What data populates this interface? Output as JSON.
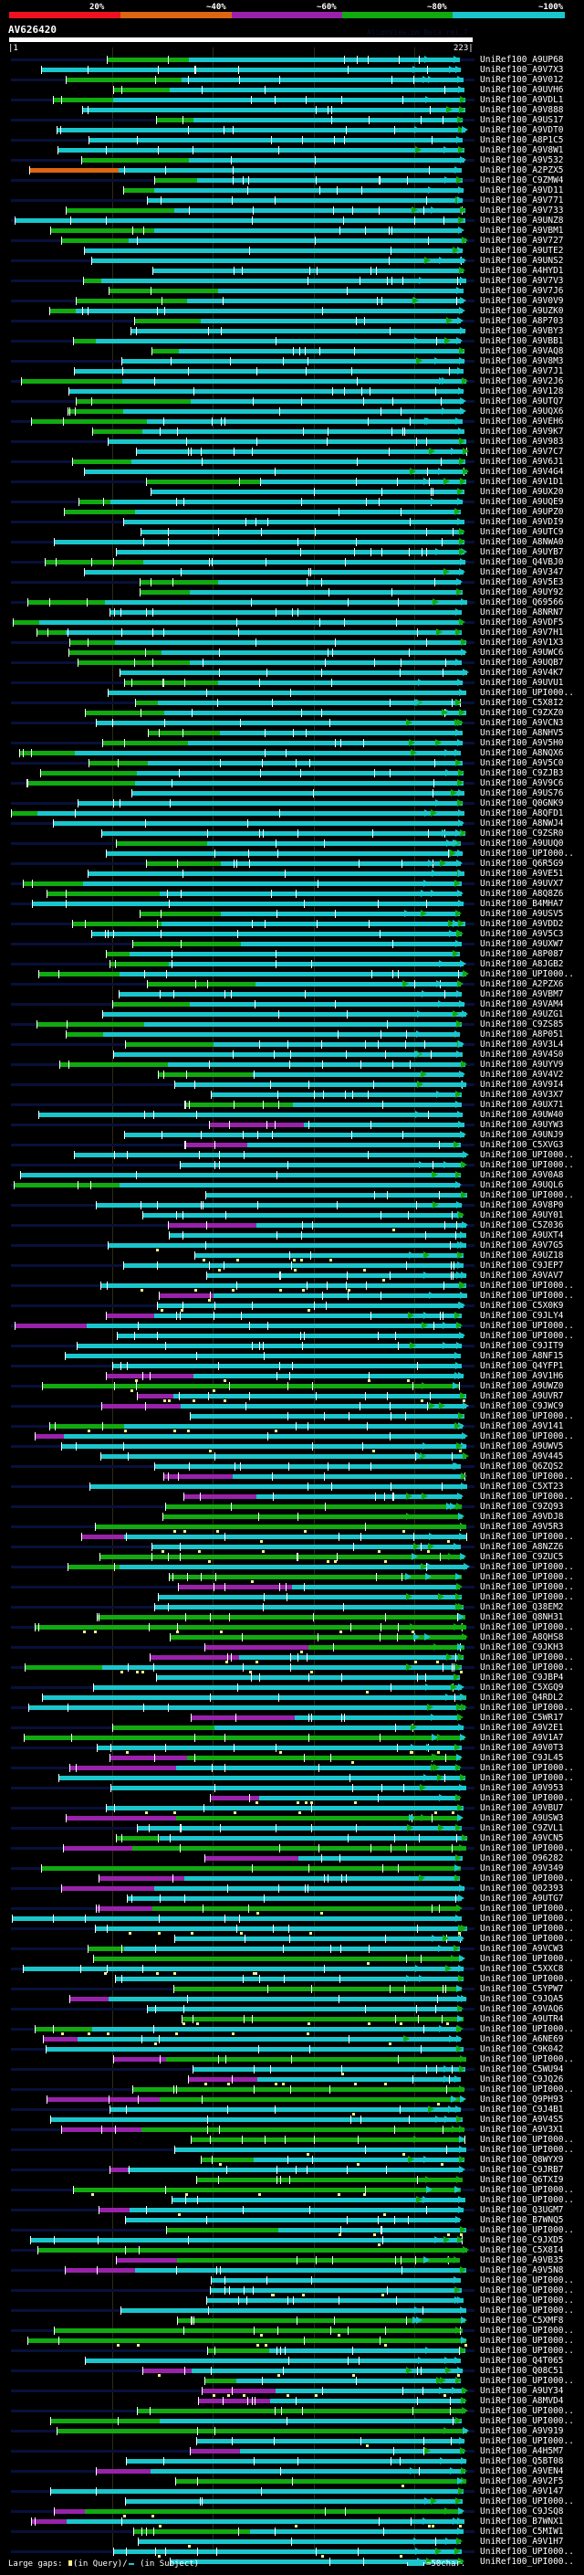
{
  "scale": {
    "labels": [
      "20%",
      "~40%",
      "~60%",
      "~80%",
      "~100%"
    ],
    "colors": [
      "#ee1122",
      "#dd6611",
      "#9922aa",
      "#11aa11",
      "#1ac6cc"
    ]
  },
  "query": {
    "name": "AV626420",
    "start": "|1",
    "end": "223|",
    "watermark": "AlignView.pm Beta rel.7"
  },
  "colors": {
    "connector": "#08103a",
    "tick": "#ffffff",
    "gap_query": "#ffee88"
  },
  "hits": [
    "UniRef100_A9UP68",
    "UniRef100_A9V7X3",
    "UniRef100_A9V012",
    "UniRef100_A9UVH6",
    "UniRef100_A9VDL1",
    "UniRef100_A9V888",
    "UniRef100_A9US17",
    "UniRef100_A9VDT0",
    "UniRef100_A8P1C5",
    "UniRef100_A9V8W1",
    "UniRef100_A9V532",
    "UniRef100_A2PZX5",
    "UniRef100_C9ZMW4",
    "UniRef100_A9VD11",
    "UniRef100_A9V771",
    "UniRef100_A9V733",
    "UniRef100_A9UNZ8",
    "UniRef100_A9VBM1",
    "UniRef100_A9V727",
    "UniRef100_A9UTE2",
    "UniRef100_A9UNS2",
    "UniRef100_A4HYD1",
    "UniRef100_A9V7V3",
    "UniRef100_A9V7J6",
    "UniRef100_A9V0V9",
    "UniRef100_A9UZK0",
    "UniRef100_A8P703",
    "UniRef100_A9VBY3",
    "UniRef100_A9VBB1",
    "UniRef100_A9VAQ8",
    "UniRef100_A9V8M3",
    "UniRef100_A9V7J1",
    "UniRef100_A9V2J6",
    "UniRef100_A9V128",
    "UniRef100_A9UTQ7",
    "UniRef100_A9UQX6",
    "UniRef100_A9VEH6",
    "UniRef100_A9V9K7",
    "UniRef100_A9V983",
    "UniRef100_A9V7C7",
    "UniRef100_A9V6J1",
    "UniRef100_A9V4G4",
    "UniRef100_A9V1D1",
    "UniRef100_A9UX20",
    "UniRef100_A9UQE9",
    "UniRef100_A9UPZ0",
    "UniRef100_A9VDI9",
    "UniRef100_A9UTC9",
    "UniRef100_A8NWA0",
    "UniRef100_A9UYB7",
    "UniRef100_Q4VBJ0",
    "UniRef100_A9V347",
    "UniRef100_A9V5E3",
    "UniRef100_A9UY92",
    "UniRef100_Q69566",
    "UniRef100_A8NRN7",
    "UniRef100_A9VDF5",
    "UniRef100_A9V7H1",
    "UniRef100_A9V1X3",
    "UniRef100_A9UWC6",
    "UniRef100_A9UQB7",
    "UniRef100_A9V4K7",
    "UniRef100_A9UVU1",
    "UniRef100_UPI000..",
    "UniRef100_C5X8I2",
    "UniRef100_C9ZXZ0",
    "UniRef100_A9VCN3",
    "UniRef100_A8NHV5",
    "UniRef100_A9V5H0",
    "UniRef100_A8NQX6",
    "UniRef100_A9V5C0",
    "UniRef100_C9ZJB3",
    "UniRef100_A9V9C6",
    "UniRef100_A9US76",
    "UniRef100_Q0GNK9",
    "UniRef100_A8QFD1",
    "UniRef100_A8NWJ4",
    "UniRef100_C9ZSR0",
    "UniRef100_A9UUQ0",
    "UniRef100_UPI000..",
    "UniRef100_Q6R5G9",
    "UniRef100_A9VE51",
    "UniRef100_A9UVX7",
    "UniRef100_A8Q8Z6",
    "UniRef100_B4MHA7",
    "UniRef100_A9USV5",
    "UniRef100_A9VDD2",
    "UniRef100_A9V5C3",
    "UniRef100_A9UXW7",
    "UniRef100_A8P087",
    "UniRef100_A8JGB2",
    "UniRef100_UPI000..",
    "UniRef100_A2PZX6",
    "UniRef100_A9VBM7",
    "UniRef100_A9VAM4",
    "UniRef100_A9UZG1",
    "UniRef100_C9ZS85",
    "UniRef100_A8P051",
    "UniRef100_A9V3L4",
    "UniRef100_A9V4S0",
    "UniRef100_A9UYV9",
    "UniRef100_A9V4V2",
    "UniRef100_A9V9I4",
    "UniRef100_A9V3X7",
    "UniRef100_A9UX71",
    "UniRef100_A9UW40",
    "UniRef100_A9UYW3",
    "UniRef100_A9UNJ9",
    "UniRef100_C5XVG3",
    "UniRef100_UPI000..",
    "UniRef100_UPI000..",
    "UniRef100_A9V0A8",
    "UniRef100_A9UQL6",
    "UniRef100_UPI000..",
    "UniRef100_A9V8P0",
    "UniRef100_A9UY01",
    "UniRef100_C5Z036",
    "UniRef100_A9UXT4",
    "UniRef100_A9V7G5",
    "UniRef100_A9UZ18",
    "UniRef100_C9JEP7",
    "UniRef100_A9VAV7",
    "UniRef100_UPI000..",
    "UniRef100_UPI000..",
    "UniRef100_C5X0K9",
    "UniRef100_C9JLY4",
    "UniRef100_UPI000..",
    "UniRef100_UPI000..",
    "UniRef100_C9JIT9",
    "UniRef100_A8NF15",
    "UniRef100_Q4YFP1",
    "UniRef100_A9V1H6",
    "UniRef100_A9UWZ0",
    "UniRef100_A9UVR7",
    "UniRef100_C9JWC9",
    "UniRef100_UPI000..",
    "UniRef100_A9V141",
    "UniRef100_UPI000..",
    "UniRef100_A9UWV5",
    "UniRef100_A9V445",
    "UniRef100_Q6ZQS2",
    "UniRef100_UPI000..",
    "UniRef100_C5XT23",
    "UniRef100_UPI000..",
    "UniRef100_C9ZQ93",
    "UniRef100_A9VDJ8",
    "UniRef100_A9V5R3",
    "UniRef100_UPI000..",
    "UniRef100_A8NZZ6",
    "UniRef100_C9ZUC5",
    "UniRef100_UPI000..",
    "UniRef100_UPI000..",
    "UniRef100_UPI000..",
    "UniRef100_UPI000..",
    "UniRef100_Q38EM2",
    "UniRef100_Q8NH31",
    "UniRef100_UPI000..",
    "UniRef100_A8QHS8",
    "UniRef100_C9JKH3",
    "UniRef100_UPI000..",
    "UniRef100_UPI000..",
    "UniRef100_C9JBP4",
    "UniRef100_C5XGQ9",
    "UniRef100_Q4RDL2",
    "UniRef100_UPI000..",
    "UniRef100_C5WR17",
    "UniRef100_A9V2E1",
    "UniRef100_A9V1A7",
    "UniRef100_A9V0T3",
    "UniRef100_C9JL45",
    "UniRef100_UPI000..",
    "UniRef100_UPI000..",
    "UniRef100_A9V953",
    "UniRef100_UPI000..",
    "UniRef100_A9VBU7",
    "UniRef100_A9USW3",
    "UniRef100_C9ZVL1",
    "UniRef100_A9VCN5",
    "UniRef100_UPI000..",
    "UniRef100_O96282",
    "UniRef100_A9V349",
    "UniRef100_UPI000..",
    "UniRef100_Q02393",
    "UniRef100_A9UTG7",
    "UniRef100_UPI000..",
    "UniRef100_UPI000..",
    "UniRef100_UPI000..",
    "UniRef100_UPI000..",
    "UniRef100_A9VCW3",
    "UniRef100_UPI000..",
    "UniRef100_C5XXC8",
    "UniRef100_UPI000..",
    "UniRef100_C5YPW7",
    "UniRef100_C9JQA5",
    "UniRef100_A9VAQ6",
    "UniRef100_A9UTR4",
    "UniRef100_UPI000..",
    "UniRef100_A6NE69",
    "UniRef100_C9K042",
    "UniRef100_UPI000..",
    "UniRef100_C5WU94",
    "UniRef100_C9JQ26",
    "UniRef100_UPI000..",
    "UniRef100_Q9PH93",
    "UniRef100_C9J4B1",
    "UniRef100_A9V4S5",
    "UniRef100_A9V3X1",
    "UniRef100_UPI000..",
    "UniRef100_UPI000..",
    "UniRef100_Q8WYX9",
    "UniRef100_C9JRB7",
    "UniRef100_Q6TXI9",
    "UniRef100_UPI000..",
    "UniRef100_UPI000..",
    "UniRef100_Q3UGM7",
    "UniRef100_B7WNQ5",
    "UniRef100_UPI000..",
    "UniRef100_C9JXD5",
    "UniRef100_C5X8I4",
    "UniRef100_A9VB35",
    "UniRef100_A9V5N8",
    "UniRef100_UPI000..",
    "UniRef100_UPI000..",
    "UniRef100_UPI000..",
    "UniRef100_UPI000..",
    "UniRef100_C5XMF8",
    "UniRef100_UPI000..",
    "UniRef100_UPI000..",
    "UniRef100_UPI000..",
    "UniRef100_Q4T065",
    "UniRef100_Q08C51",
    "UniRef100_UPI000..",
    "UniRef100_A9UY34",
    "UniRef100_A8MVD4",
    "UniRef100_UPI000..",
    "UniRef100_UPI000..",
    "UniRef100_A9V919",
    "UniRef100_UPI000..",
    "UniRef100_A4H5M7",
    "UniRef100_Q5BT08",
    "UniRef100_A9VEN4",
    "UniRef100_A9V2F5",
    "UniRef100_A9V147",
    "UniRef100_UPI000..",
    "UniRef100_C9JSQ8",
    "UniRef100_B7WNX1",
    "UniRef100_C5MIW1",
    "UniRef100_A9V1H7",
    "UniRef100_UPI000..",
    "UniRef100_UPI000.."
  ],
  "footer": {
    "gaps_label": "Large gaps:",
    "in_query": "(in Query)/",
    "in_subject": "(in Subject)",
    "scale_legend": "=50char."
  }
}
